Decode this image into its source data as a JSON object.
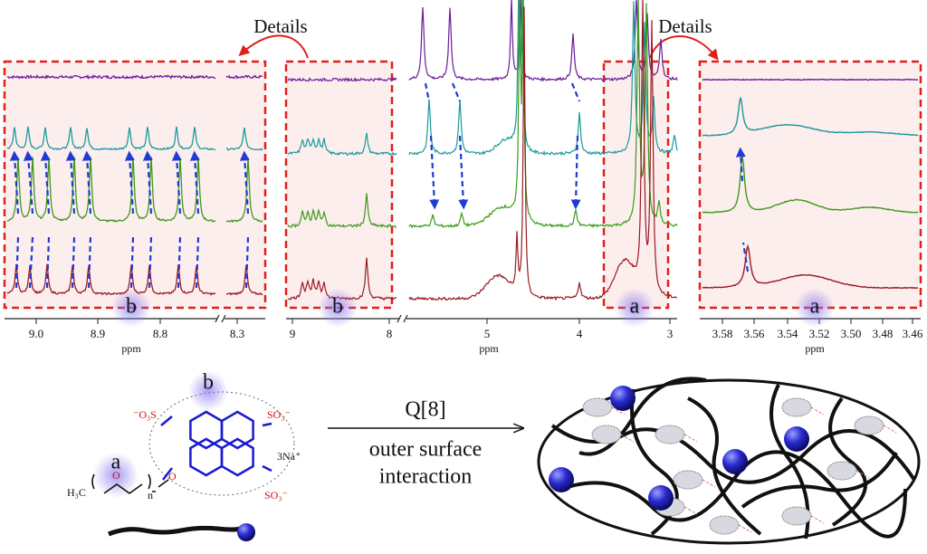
{
  "callouts": [
    "Details",
    "Details"
  ],
  "panels": [
    {
      "ticks": [
        "9.0",
        "8.9",
        "8.8",
        "8.3"
      ],
      "axis_label": "ppm",
      "region_label": "b"
    },
    {
      "ticks": [
        "9",
        "8",
        "5",
        "4",
        "3"
      ],
      "axis_label": "ppm",
      "region_labels": [
        "b",
        "a"
      ]
    },
    {
      "ticks": [
        "3.58",
        "3.56",
        "3.54",
        "3.52",
        "3.50",
        "3.48",
        "3.46"
      ],
      "axis_label": "ppm",
      "region_label": "a"
    }
  ],
  "molecule": {
    "sulfonate_left": "⁻O₃S",
    "sulfonate_top": "SO₃⁻",
    "sulfonate_bottom": "SO₃⁻",
    "counter_ion": "3Na⁺",
    "methyl": "H₃C",
    "oxygen_chain": "O",
    "oxygen_link": "O",
    "repeat": "n",
    "label_a": "a",
    "label_b": "b"
  },
  "reaction": {
    "reagent": "Q[8]",
    "condition": [
      "outer surface",
      "interaction"
    ]
  }
}
